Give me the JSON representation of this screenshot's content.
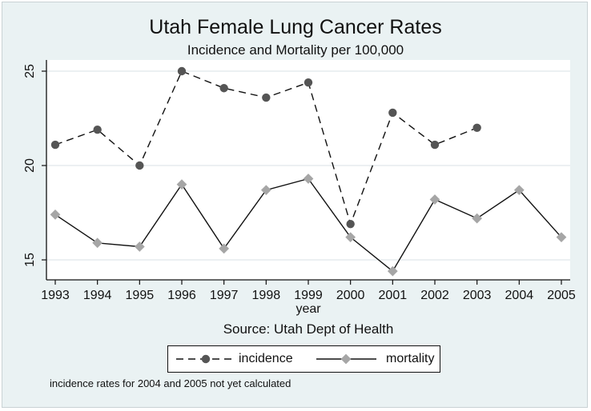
{
  "chart_data": {
    "type": "line",
    "title": "Utah Female Lung Cancer Rates",
    "subtitle": "Incidence and Mortality per 100,000",
    "xlabel": "year",
    "ylabel": "",
    "source": "Source: Utah Dept of Health",
    "note": "incidence rates for 2004 and 2005 not yet calculated",
    "x": [
      1993,
      1994,
      1995,
      1996,
      1997,
      1998,
      1999,
      2000,
      2001,
      2002,
      2003,
      2004,
      2005
    ],
    "x_ticks": [
      "1993",
      "1994",
      "1995",
      "1996",
      "1997",
      "1998",
      "1999",
      "2000",
      "2001",
      "2002",
      "2003",
      "2004",
      "2005"
    ],
    "y_ticks": [
      "15",
      "20",
      "25"
    ],
    "ylim": [
      14.2,
      25.5
    ],
    "grid": "horizontal",
    "legend_position": "bottom",
    "series": [
      {
        "name": "incidence",
        "line_style": "dashed",
        "marker": "circle",
        "color": "#555555",
        "values": [
          21.1,
          21.9,
          20.0,
          25.0,
          24.1,
          23.6,
          24.4,
          16.9,
          22.8,
          21.1,
          22.0,
          null,
          null
        ]
      },
      {
        "name": "mortality",
        "line_style": "solid",
        "marker": "diamond",
        "color": "#a6a6a6",
        "values": [
          17.4,
          15.9,
          15.7,
          19.0,
          15.6,
          18.7,
          19.3,
          16.2,
          14.4,
          18.2,
          17.2,
          18.7,
          16.2
        ]
      }
    ]
  }
}
